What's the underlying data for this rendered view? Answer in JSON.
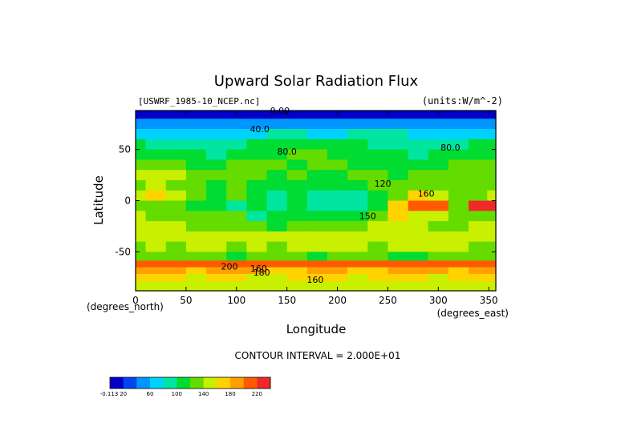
{
  "chart_data": {
    "type": "heatmap",
    "title": "Upward Solar Radiation Flux",
    "file_label": "[USWRF_1985-10_NCEP.nc]",
    "units_label": "(units:W/m^-2)",
    "xlabel": "Longitude",
    "ylabel": "Latitude",
    "x_unit_label": "(degrees_east)",
    "y_unit_label": "(degrees_north)",
    "xlim": [
      0,
      357
    ],
    "ylim": [
      -88,
      88
    ],
    "x_ticks": [
      0,
      50,
      100,
      150,
      200,
      250,
      300,
      350
    ],
    "y_ticks": [
      -50,
      0,
      50
    ],
    "x_tick_labels": [
      "0",
      "50",
      "100",
      "150",
      "200",
      "250",
      "300",
      "350"
    ],
    "y_tick_labels": [
      "-50",
      "0",
      "50"
    ],
    "contour_interval_text": "CONTOUR INTERVAL = 2.000E+01",
    "contour_levels": [
      0,
      20,
      40,
      60,
      80,
      100,
      120,
      140,
      160,
      180,
      200,
      220
    ],
    "colorbar": {
      "labels": [
        "-0.113",
        "20",
        "60",
        "100",
        "140",
        "180",
        "220"
      ],
      "colors": [
        "#0000c8",
        "#0046f0",
        "#0096ff",
        "#00d2ff",
        "#00e6a0",
        "#00dc32",
        "#64dc00",
        "#c8f000",
        "#ffd200",
        "#ffa000",
        "#ff5a00",
        "#f02828"
      ]
    },
    "latitudes": [
      85,
      75,
      65,
      55,
      45,
      35,
      25,
      15,
      5,
      -5,
      -15,
      -25,
      -35,
      -45,
      -55,
      -62,
      -68,
      -75,
      -82,
      -88
    ],
    "longitudes": [
      0,
      20,
      40,
      60,
      80,
      100,
      120,
      140,
      160,
      180,
      200,
      220,
      240,
      260,
      280,
      300,
      320,
      340,
      357
    ],
    "values": [
      [
        10,
        10,
        10,
        10,
        10,
        10,
        10,
        10,
        10,
        10,
        10,
        10,
        10,
        10,
        10,
        10,
        10,
        10,
        10
      ],
      [
        45,
        45,
        50,
        45,
        40,
        40,
        40,
        45,
        45,
        45,
        50,
        50,
        50,
        45,
        45,
        50,
        45,
        40,
        45
      ],
      [
        70,
        70,
        75,
        70,
        65,
        70,
        75,
        80,
        80,
        75,
        75,
        80,
        85,
        80,
        75,
        70,
        70,
        75,
        70
      ],
      [
        100,
        95,
        90,
        85,
        80,
        90,
        100,
        105,
        110,
        110,
        105,
        100,
        95,
        90,
        85,
        85,
        90,
        100,
        100
      ],
      [
        110,
        115,
        105,
        100,
        90,
        100,
        110,
        115,
        120,
        120,
        115,
        110,
        110,
        100,
        95,
        100,
        110,
        115,
        110
      ],
      [
        125,
        135,
        125,
        110,
        105,
        120,
        125,
        120,
        115,
        120,
        120,
        115,
        110,
        115,
        115,
        110,
        120,
        125,
        125
      ],
      [
        140,
        155,
        140,
        125,
        120,
        135,
        125,
        110,
        120,
        115,
        115,
        120,
        120,
        110,
        120,
        130,
        135,
        130,
        135
      ],
      [
        130,
        140,
        130,
        120,
        115,
        125,
        110,
        105,
        110,
        110,
        110,
        115,
        120,
        120,
        130,
        130,
        120,
        120,
        130
      ],
      [
        150,
        170,
        140,
        120,
        110,
        120,
        100,
        95,
        100,
        80,
        90,
        95,
        100,
        120,
        170,
        150,
        125,
        120,
        140
      ],
      [
        135,
        125,
        125,
        115,
        105,
        95,
        100,
        90,
        100,
        95,
        90,
        90,
        110,
        160,
        210,
        200,
        130,
        230,
        225
      ],
      [
        140,
        130,
        135,
        125,
        120,
        120,
        95,
        100,
        110,
        110,
        115,
        105,
        120,
        165,
        150,
        140,
        125,
        120,
        130
      ],
      [
        150,
        145,
        140,
        130,
        125,
        130,
        120,
        115,
        125,
        130,
        135,
        130,
        140,
        150,
        145,
        135,
        130,
        140,
        140
      ],
      [
        150,
        155,
        150,
        145,
        140,
        145,
        140,
        140,
        150,
        145,
        150,
        150,
        145,
        145,
        150,
        140,
        145,
        150,
        150
      ],
      [
        135,
        140,
        135,
        140,
        140,
        135,
        140,
        135,
        140,
        145,
        140,
        140,
        135,
        140,
        145,
        140,
        140,
        135,
        135
      ],
      [
        120,
        120,
        125,
        120,
        120,
        115,
        120,
        120,
        120,
        115,
        120,
        120,
        120,
        115,
        115,
        120,
        120,
        120,
        120
      ],
      [
        205,
        210,
        210,
        205,
        205,
        200,
        205,
        205,
        205,
        200,
        205,
        210,
        210,
        205,
        200,
        205,
        210,
        205,
        205
      ],
      [
        185,
        180,
        180,
        175,
        185,
        185,
        180,
        175,
        175,
        180,
        180,
        175,
        175,
        180,
        185,
        180,
        175,
        180,
        185
      ],
      [
        160,
        165,
        160,
        155,
        160,
        160,
        155,
        155,
        160,
        160,
        160,
        155,
        160,
        165,
        160,
        155,
        160,
        160,
        160
      ],
      [
        140,
        145,
        140,
        140,
        145,
        145,
        140,
        140,
        140,
        140,
        145,
        140,
        140,
        140,
        145,
        140,
        140,
        145,
        140
      ],
      [
        150,
        150,
        150,
        150,
        150,
        150,
        150,
        150,
        150,
        150,
        150,
        150,
        150,
        150,
        150,
        150,
        150,
        150,
        150
      ]
    ],
    "contour_labels": [
      {
        "text": "0.00",
        "lon": 143,
        "lat": 88
      },
      {
        "text": "40.0",
        "lon": 123,
        "lat": 70
      },
      {
        "text": "80.0",
        "lon": 150,
        "lat": 48
      },
      {
        "text": "80.0",
        "lon": 312,
        "lat": 52
      },
      {
        "text": "120",
        "lon": 245,
        "lat": 17
      },
      {
        "text": "160",
        "lon": 288,
        "lat": 7
      },
      {
        "text": "150",
        "lon": 230,
        "lat": -15
      },
      {
        "text": "200",
        "lon": 93,
        "lat": -64
      },
      {
        "text": "160",
        "lon": 122,
        "lat": -66
      },
      {
        "text": "180",
        "lon": 125,
        "lat": -70
      },
      {
        "text": "160",
        "lon": 178,
        "lat": -77
      }
    ]
  }
}
